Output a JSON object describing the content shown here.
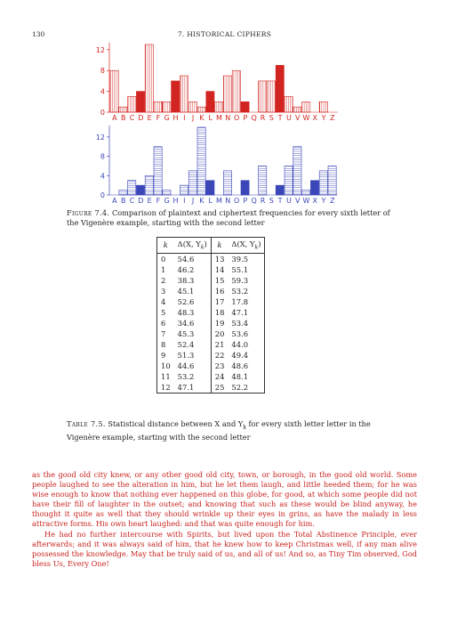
{
  "header": {
    "page_number": "130",
    "running_head": "7. HISTORICAL CIPHERS"
  },
  "chart_data": [
    {
      "type": "bar",
      "categories": [
        "A",
        "B",
        "C",
        "D",
        "E",
        "F",
        "G",
        "H",
        "I",
        "J",
        "K",
        "L",
        "M",
        "N",
        "O",
        "P",
        "Q",
        "R",
        "S",
        "T",
        "U",
        "V",
        "W",
        "X",
        "Y",
        "Z"
      ],
      "values": [
        8,
        1,
        3,
        4,
        13,
        2,
        2,
        6,
        7,
        2,
        1,
        4,
        2,
        7,
        8,
        2,
        0,
        6,
        6,
        9,
        3,
        1,
        2,
        0,
        2,
        0
      ],
      "highlight": [
        "D",
        "H",
        "L",
        "P",
        "T",
        "X"
      ],
      "ylim": [
        0,
        13
      ],
      "yticks": [
        0,
        4,
        8,
        12
      ],
      "color": "#d22420",
      "pattern": "vertical"
    },
    {
      "type": "bar",
      "categories": [
        "A",
        "B",
        "C",
        "D",
        "E",
        "F",
        "G",
        "H",
        "I",
        "J",
        "K",
        "L",
        "M",
        "N",
        "O",
        "P",
        "Q",
        "R",
        "S",
        "T",
        "U",
        "V",
        "W",
        "X",
        "Y",
        "Z"
      ],
      "values": [
        0,
        1,
        3,
        2,
        4,
        10,
        1,
        0,
        2,
        5,
        14,
        3,
        0,
        5,
        0,
        3,
        0,
        6,
        0,
        2,
        6,
        10,
        1,
        3,
        5,
        6
      ],
      "highlight": [
        "D",
        "H",
        "L",
        "P",
        "T",
        "X"
      ],
      "ylim": [
        0,
        14
      ],
      "yticks": [
        0,
        4,
        8,
        12
      ],
      "color": "#3b46b8",
      "pattern": "horizontal"
    }
  ],
  "figure_caption": {
    "label": "Figure 7.4.",
    "text": "Comparison of plaintext and ciphertext frequencies for every sixth letter of the Vigenère example, starting with the second letter"
  },
  "table": {
    "headers": [
      "k",
      "Δ(X, Y_k)",
      "k",
      "Δ(X, Y_k)"
    ],
    "rows": [
      [
        "0",
        "54.6",
        "13",
        "39.5"
      ],
      [
        "1",
        "46.2",
        "14",
        "55.1"
      ],
      [
        "2",
        "38.3",
        "15",
        "59.3"
      ],
      [
        "3",
        "45.1",
        "16",
        "53.2"
      ],
      [
        "4",
        "52.6",
        "17",
        "17.8"
      ],
      [
        "5",
        "48.3",
        "18",
        "47.1"
      ],
      [
        "6",
        "34.6",
        "19",
        "53.4"
      ],
      [
        "7",
        "45.3",
        "20",
        "53.6"
      ],
      [
        "8",
        "52.4",
        "21",
        "44.0"
      ],
      [
        "9",
        "51.3",
        "22",
        "49.4"
      ],
      [
        "10",
        "44.6",
        "23",
        "48.6"
      ],
      [
        "11",
        "53.2",
        "24",
        "48.1"
      ],
      [
        "12",
        "47.1",
        "25",
        "52.2"
      ]
    ]
  },
  "table_caption": {
    "label": "Table 7.5.",
    "text": "Statistical distance between X and Y_k for every sixth letter letter in the Vigenère example, starting with the second letter"
  },
  "body": {
    "paragraph1": "as the good old city knew, or any other good old city, town, or borough, in the good old world. Some people laughed to see the alteration in him, but he let them laugh, and little heeded them; for he was wise enough to know that nothing ever happened on this globe, for good, at which some people did not have their fill of laughter in the outset; and knowing that such as these would be blind anyway, he thought it quite as well that they should wrinkle up their eyes in grins, as have the malady in less attractive forms. His own heart laughed: and that was quite enough for him.",
    "paragraph2": "He had no further intercourse with Spirits, but lived upon the Total Abstinence Principle, ever afterwards; and it was always said of him, that he knew how to keep Christmas well, if any man alive possessed the knowledge. May that be truly said of us, and all of us! And so, as Tiny Tim observed, God bless Us, Every One!"
  }
}
